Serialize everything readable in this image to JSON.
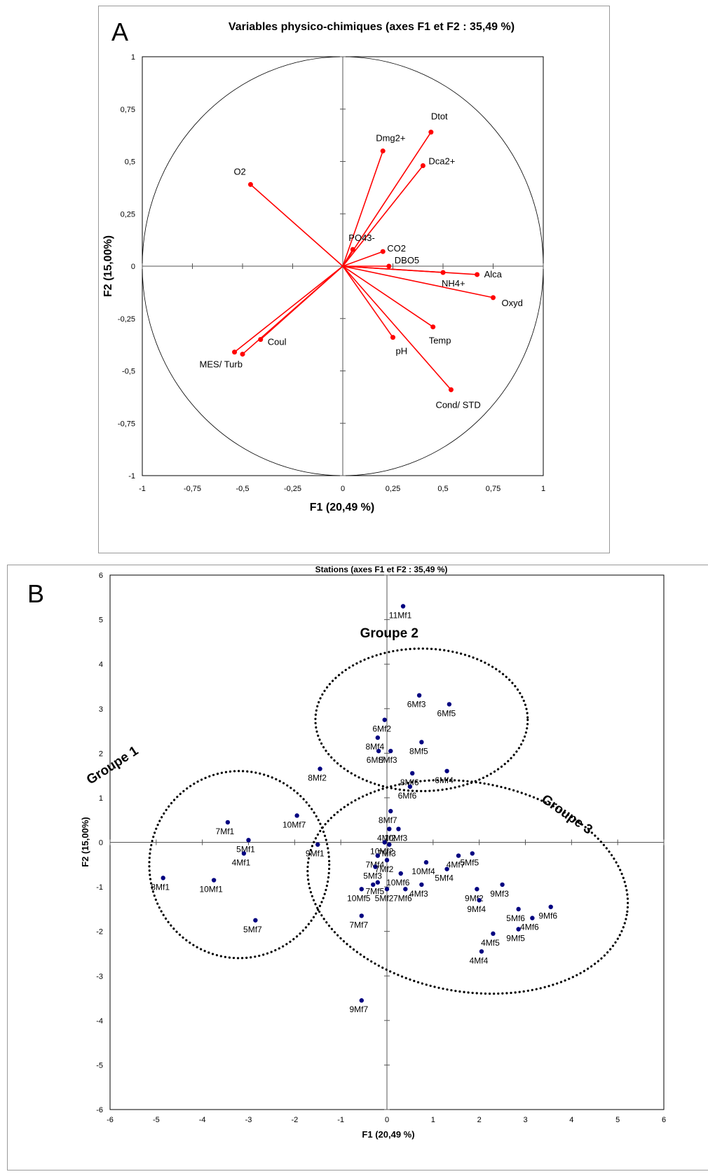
{
  "chart_data": [
    {
      "panel_label": "A",
      "type": "scatter",
      "title": "Variables physico-chimiques (axes F1 et F2 : 35,49 %)",
      "xlabel": "F1 (20,49 %)",
      "ylabel": "F2 (15,00%)",
      "xlim": [
        -1,
        1
      ],
      "ylim": [
        -1,
        1
      ],
      "x_ticks": [
        "-1",
        "-0,75",
        "-0,5",
        "-0,25",
        "0",
        "0,25",
        "0,5",
        "0,75",
        "1"
      ],
      "y_ticks": [
        "-1",
        "-0,75",
        "-0,5",
        "-0,25",
        "0",
        "0,25",
        "0,5",
        "0,75",
        "1"
      ],
      "tick_values": [
        -1,
        -0.75,
        -0.5,
        -0.25,
        0,
        0.25,
        0.5,
        0.75,
        1
      ],
      "correlation_circle": true,
      "vector_color": "#ff0000",
      "points": [
        {
          "label": "Dtot",
          "x": 0.44,
          "y": 0.64
        },
        {
          "label": "Dmg2+",
          "x": 0.2,
          "y": 0.55
        },
        {
          "label": "Dca2+",
          "x": 0.4,
          "y": 0.48
        },
        {
          "label": "O2",
          "x": -0.46,
          "y": 0.39
        },
        {
          "label": "PO43-",
          "x": 0.05,
          "y": 0.08
        },
        {
          "label": "CO2",
          "x": 0.2,
          "y": 0.07
        },
        {
          "label": "DBO5",
          "x": 0.23,
          "y": 0.0
        },
        {
          "label": "NH4+",
          "x": 0.5,
          "y": -0.03
        },
        {
          "label": "Alca",
          "x": 0.67,
          "y": -0.04
        },
        {
          "label": "Oxyd",
          "x": 0.75,
          "y": -0.15
        },
        {
          "label": "Temp",
          "x": 0.45,
          "y": -0.29
        },
        {
          "label": "pH",
          "x": 0.25,
          "y": -0.34
        },
        {
          "label": "Coul",
          "x": -0.41,
          "y": -0.35
        },
        {
          "label": "MES/ Turb",
          "x": -0.54,
          "y": -0.41
        },
        {
          "label": "",
          "x": -0.5,
          "y": -0.42
        },
        {
          "label": "Cond/ STD",
          "x": 0.54,
          "y": -0.59
        }
      ]
    },
    {
      "panel_label": "B",
      "type": "scatter",
      "title": "Stations (axes F1 et F2 : 35,49 %)",
      "xlabel": "F1 (20,49 %)",
      "ylabel": "F2 (15,00%)",
      "xlim": [
        -6,
        6
      ],
      "ylim": [
        -6,
        6
      ],
      "x_ticks": [
        "-6",
        "-5",
        "-4",
        "-3",
        "-2",
        "-1",
        "0",
        "1",
        "2",
        "3",
        "4",
        "5",
        "6"
      ],
      "y_ticks": [
        "-6",
        "-5",
        "-4",
        "-3",
        "-2",
        "-1",
        "0",
        "1",
        "2",
        "3",
        "4",
        "5",
        "6"
      ],
      "tick_values": [
        -6,
        -5,
        -4,
        -3,
        -2,
        -1,
        0,
        1,
        2,
        3,
        4,
        5,
        6
      ],
      "point_color": "#000080",
      "groups": [
        {
          "label": "Groupe 1",
          "cx": -3.2,
          "cy": -0.5,
          "rx": 1.95,
          "ry": 2.1,
          "angle": 0
        },
        {
          "label": "Groupe 2",
          "cx": 0.75,
          "cy": 2.75,
          "rx": 2.3,
          "ry": 1.6,
          "angle": 0
        },
        {
          "label": "Groupe 3",
          "cx": 1.75,
          "cy": -1.0,
          "rx": 3.5,
          "ry": 2.35,
          "angle": 10
        }
      ],
      "points": [
        {
          "label": "11Mf1",
          "x": 0.35,
          "y": 5.3
        },
        {
          "label": "6Mf3",
          "x": 0.7,
          "y": 3.3
        },
        {
          "label": "6Mf5",
          "x": 1.35,
          "y": 3.1
        },
        {
          "label": "6Mf2",
          "x": -0.05,
          "y": 2.75
        },
        {
          "label": "8Mf4",
          "x": -0.2,
          "y": 2.35
        },
        {
          "label": "6Mf7",
          "x": -0.18,
          "y": 2.05
        },
        {
          "label": "8Mf5",
          "x": 0.75,
          "y": 2.25
        },
        {
          "label": "8Mf3",
          "x": 0.08,
          "y": 2.05
        },
        {
          "label": "8Mf2",
          "x": -1.45,
          "y": 1.65
        },
        {
          "label": "8Mf6",
          "x": 0.55,
          "y": 1.55
        },
        {
          "label": "6Mf4",
          "x": 1.3,
          "y": 1.6
        },
        {
          "label": "6Mf6",
          "x": 0.5,
          "y": 1.25
        },
        {
          "label": "8Mf7",
          "x": 0.08,
          "y": 0.7
        },
        {
          "label": "7Mf1",
          "x": -3.45,
          "y": 0.45
        },
        {
          "label": "10Mf7",
          "x": -1.95,
          "y": 0.6
        },
        {
          "label": "5Mf1",
          "x": -3.0,
          "y": 0.05
        },
        {
          "label": "4Mf1",
          "x": -3.1,
          "y": -0.25
        },
        {
          "label": "9Mf1",
          "x": -1.5,
          "y": -0.05
        },
        {
          "label": "4Mf2",
          "x": 0.05,
          "y": 0.3
        },
        {
          "label": "10Mf3",
          "x": 0.25,
          "y": 0.3
        },
        {
          "label": "10Mf2",
          "x": -0.05,
          "y": 0.0
        },
        {
          "label": "7Mf3",
          "x": 0.05,
          "y": -0.05
        },
        {
          "label": "4Mf7",
          "x": 1.55,
          "y": -0.3
        },
        {
          "label": "5Mf5",
          "x": 1.85,
          "y": -0.25
        },
        {
          "label": "7Mf4",
          "x": -0.2,
          "y": -0.3
        },
        {
          "label": "10Mf4",
          "x": 0.85,
          "y": -0.45
        },
        {
          "label": "5Mf3",
          "x": -0.25,
          "y": -0.55
        },
        {
          "label": "7Mf2",
          "x": 0.0,
          "y": -0.4
        },
        {
          "label": "5Mf4",
          "x": 1.3,
          "y": -0.6
        },
        {
          "label": "10Mf6",
          "x": 0.3,
          "y": -0.7
        },
        {
          "label": "9Mf2",
          "x": 1.95,
          "y": -1.05
        },
        {
          "label": "9Mf3",
          "x": 2.5,
          "y": -0.95
        },
        {
          "label": "8Mf1",
          "x": -4.85,
          "y": -0.8
        },
        {
          "label": "10Mf1",
          "x": -3.75,
          "y": -0.85
        },
        {
          "label": "10Mf5",
          "x": -0.55,
          "y": -1.05
        },
        {
          "label": "7Mf5",
          "x": -0.2,
          "y": -0.9
        },
        {
          "label": "",
          "x": -0.3,
          "y": -0.95
        },
        {
          "label": "4Mf3",
          "x": 0.75,
          "y": -0.95
        },
        {
          "label": "5Mf2",
          "x": 0.0,
          "y": -1.05
        },
        {
          "label": "7Mf6",
          "x": 0.4,
          "y": -1.05
        },
        {
          "label": "9Mf4",
          "x": 2.0,
          "y": -1.3
        },
        {
          "label": "5Mf6",
          "x": 2.85,
          "y": -1.5
        },
        {
          "label": "9Mf6",
          "x": 3.55,
          "y": -1.45
        },
        {
          "label": "7Mf7",
          "x": -0.55,
          "y": -1.65
        },
        {
          "label": "4Mf6",
          "x": 3.15,
          "y": -1.7
        },
        {
          "label": "5Mf7",
          "x": -2.85,
          "y": -1.75
        },
        {
          "label": "4Mf5",
          "x": 2.3,
          "y": -2.05
        },
        {
          "label": "9Mf5",
          "x": 2.85,
          "y": -1.95
        },
        {
          "label": "4Mf4",
          "x": 2.05,
          "y": -2.45
        },
        {
          "label": "9Mf7",
          "x": -0.55,
          "y": -3.55
        }
      ]
    }
  ]
}
